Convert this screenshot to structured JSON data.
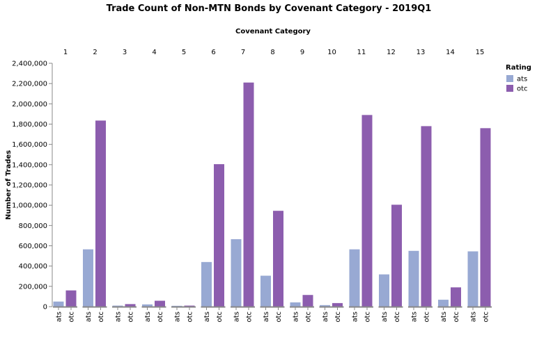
{
  "chart_data": {
    "type": "bar",
    "title": "Trade Count of Non-MTN Bonds by Covenant Category - 2019Q1",
    "column_header": "Covenant Category",
    "ylabel": "Number of Trades",
    "xlabel": "",
    "ylim": [
      0,
      2400000
    ],
    "y_ticks": [
      0,
      200000,
      400000,
      600000,
      800000,
      1000000,
      1200000,
      1400000,
      1600000,
      1800000,
      2000000,
      2200000,
      2400000
    ],
    "y_tick_labels": [
      "0",
      "200,000",
      "400,000",
      "600,000",
      "800,000",
      "1,000,000",
      "1,200,000",
      "1,400,000",
      "1,600,000",
      "1,800,000",
      "2,000,000",
      "2,200,000",
      "2,400,000"
    ],
    "categories": [
      "1",
      "2",
      "3",
      "4",
      "5",
      "6",
      "7",
      "8",
      "9",
      "10",
      "11",
      "12",
      "13",
      "14",
      "15"
    ],
    "sub_categories": [
      "ats",
      "otc"
    ],
    "legend_title": "Rating",
    "legend_position": "top-right",
    "grid": false,
    "series": [
      {
        "name": "ats",
        "color": "#98a9d3",
        "values": [
          50000,
          565000,
          10000,
          22000,
          8000,
          440000,
          665000,
          305000,
          42000,
          15000,
          565000,
          318000,
          550000,
          68000,
          545000
        ]
      },
      {
        "name": "otc",
        "color": "#8c5dae",
        "values": [
          160000,
          1835000,
          25000,
          58000,
          10000,
          1405000,
          2210000,
          945000,
          115000,
          35000,
          1890000,
          1005000,
          1780000,
          190000,
          1760000
        ]
      }
    ]
  }
}
